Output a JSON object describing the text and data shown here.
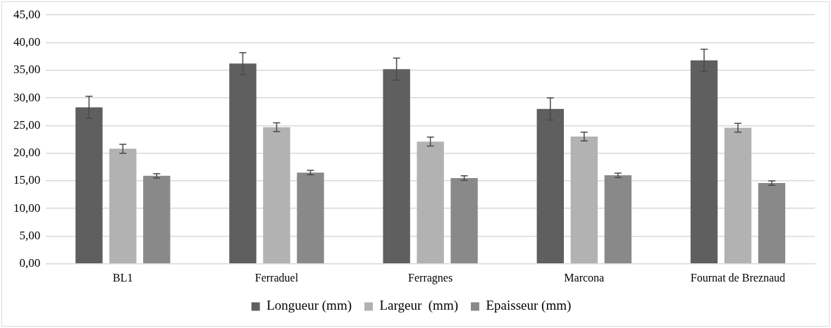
{
  "chart_data": {
    "type": "bar",
    "categories": [
      "BL1",
      "Ferraduel",
      "Ferragnes",
      "Marcona",
      "Fournat de Breznaud"
    ],
    "series": [
      {
        "name": "Longueur (mm)",
        "color": "#5f5f5f",
        "values": [
          28.3,
          36.2,
          35.2,
          28.0,
          36.8
        ],
        "errors": [
          2.0,
          2.0,
          2.0,
          2.0,
          2.0
        ]
      },
      {
        "name": "Largeur  (mm)",
        "color": "#b2b2b2",
        "values": [
          20.8,
          24.7,
          22.1,
          23.0,
          24.6
        ],
        "errors": [
          0.8,
          0.8,
          0.8,
          0.8,
          0.8
        ]
      },
      {
        "name": "Epaisseur (mm)",
        "color": "#898989",
        "values": [
          15.9,
          16.5,
          15.5,
          16.0,
          14.6
        ],
        "errors": [
          0.4,
          0.4,
          0.4,
          0.4,
          0.4
        ]
      }
    ],
    "ylim": [
      0,
      45
    ],
    "yticks": [
      {
        "value": 0,
        "label": "0,00"
      },
      {
        "value": 5,
        "label": "5,00"
      },
      {
        "value": 10,
        "label": "10,00"
      },
      {
        "value": 15,
        "label": "15,00"
      },
      {
        "value": 20,
        "label": "20,00"
      },
      {
        "value": 25,
        "label": "25,00"
      },
      {
        "value": 30,
        "label": "30,00"
      },
      {
        "value": 35,
        "label": "35,00"
      },
      {
        "value": 40,
        "label": "40,00"
      },
      {
        "value": 45,
        "label": "45,00"
      }
    ],
    "grid": "y",
    "legend": "bottom"
  }
}
